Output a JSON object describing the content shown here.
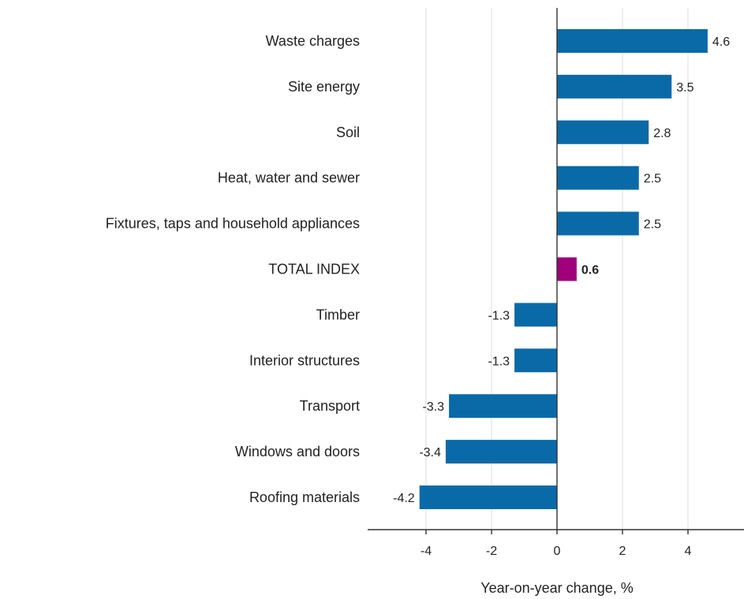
{
  "chart_data": {
    "type": "bar",
    "orientation": "horizontal",
    "categories": [
      "Waste charges",
      "Site energy",
      "Soil",
      "Heat, water and sewer",
      "Fixtures, taps and household appliances",
      "TOTAL INDEX",
      "Timber",
      "Interior structures",
      "Transport",
      "Windows and doors",
      "Roofing materials"
    ],
    "values": [
      4.6,
      3.5,
      2.8,
      2.5,
      2.5,
      0.6,
      -1.3,
      -1.3,
      -3.3,
      -3.4,
      -4.2
    ],
    "value_labels": [
      "4.6",
      "3.5",
      "2.8",
      "2.5",
      "2.5",
      "0.6",
      "-1.3",
      "-1.3",
      "-3.3",
      "-3.4",
      "-4.2"
    ],
    "highlight_category": "TOTAL INDEX",
    "colors": {
      "bar": "#0a6aa8",
      "highlight": "#a0007c"
    },
    "xlabel": "Year-on-year change, %",
    "ylabel": "",
    "xlim": [
      -5.65,
      5.65
    ],
    "xticks": [
      -4,
      -2,
      0,
      2,
      4
    ],
    "xtick_labels": [
      "-4",
      "-2",
      "0",
      "2",
      "4"
    ],
    "grid": "vertical",
    "legend": "none"
  }
}
